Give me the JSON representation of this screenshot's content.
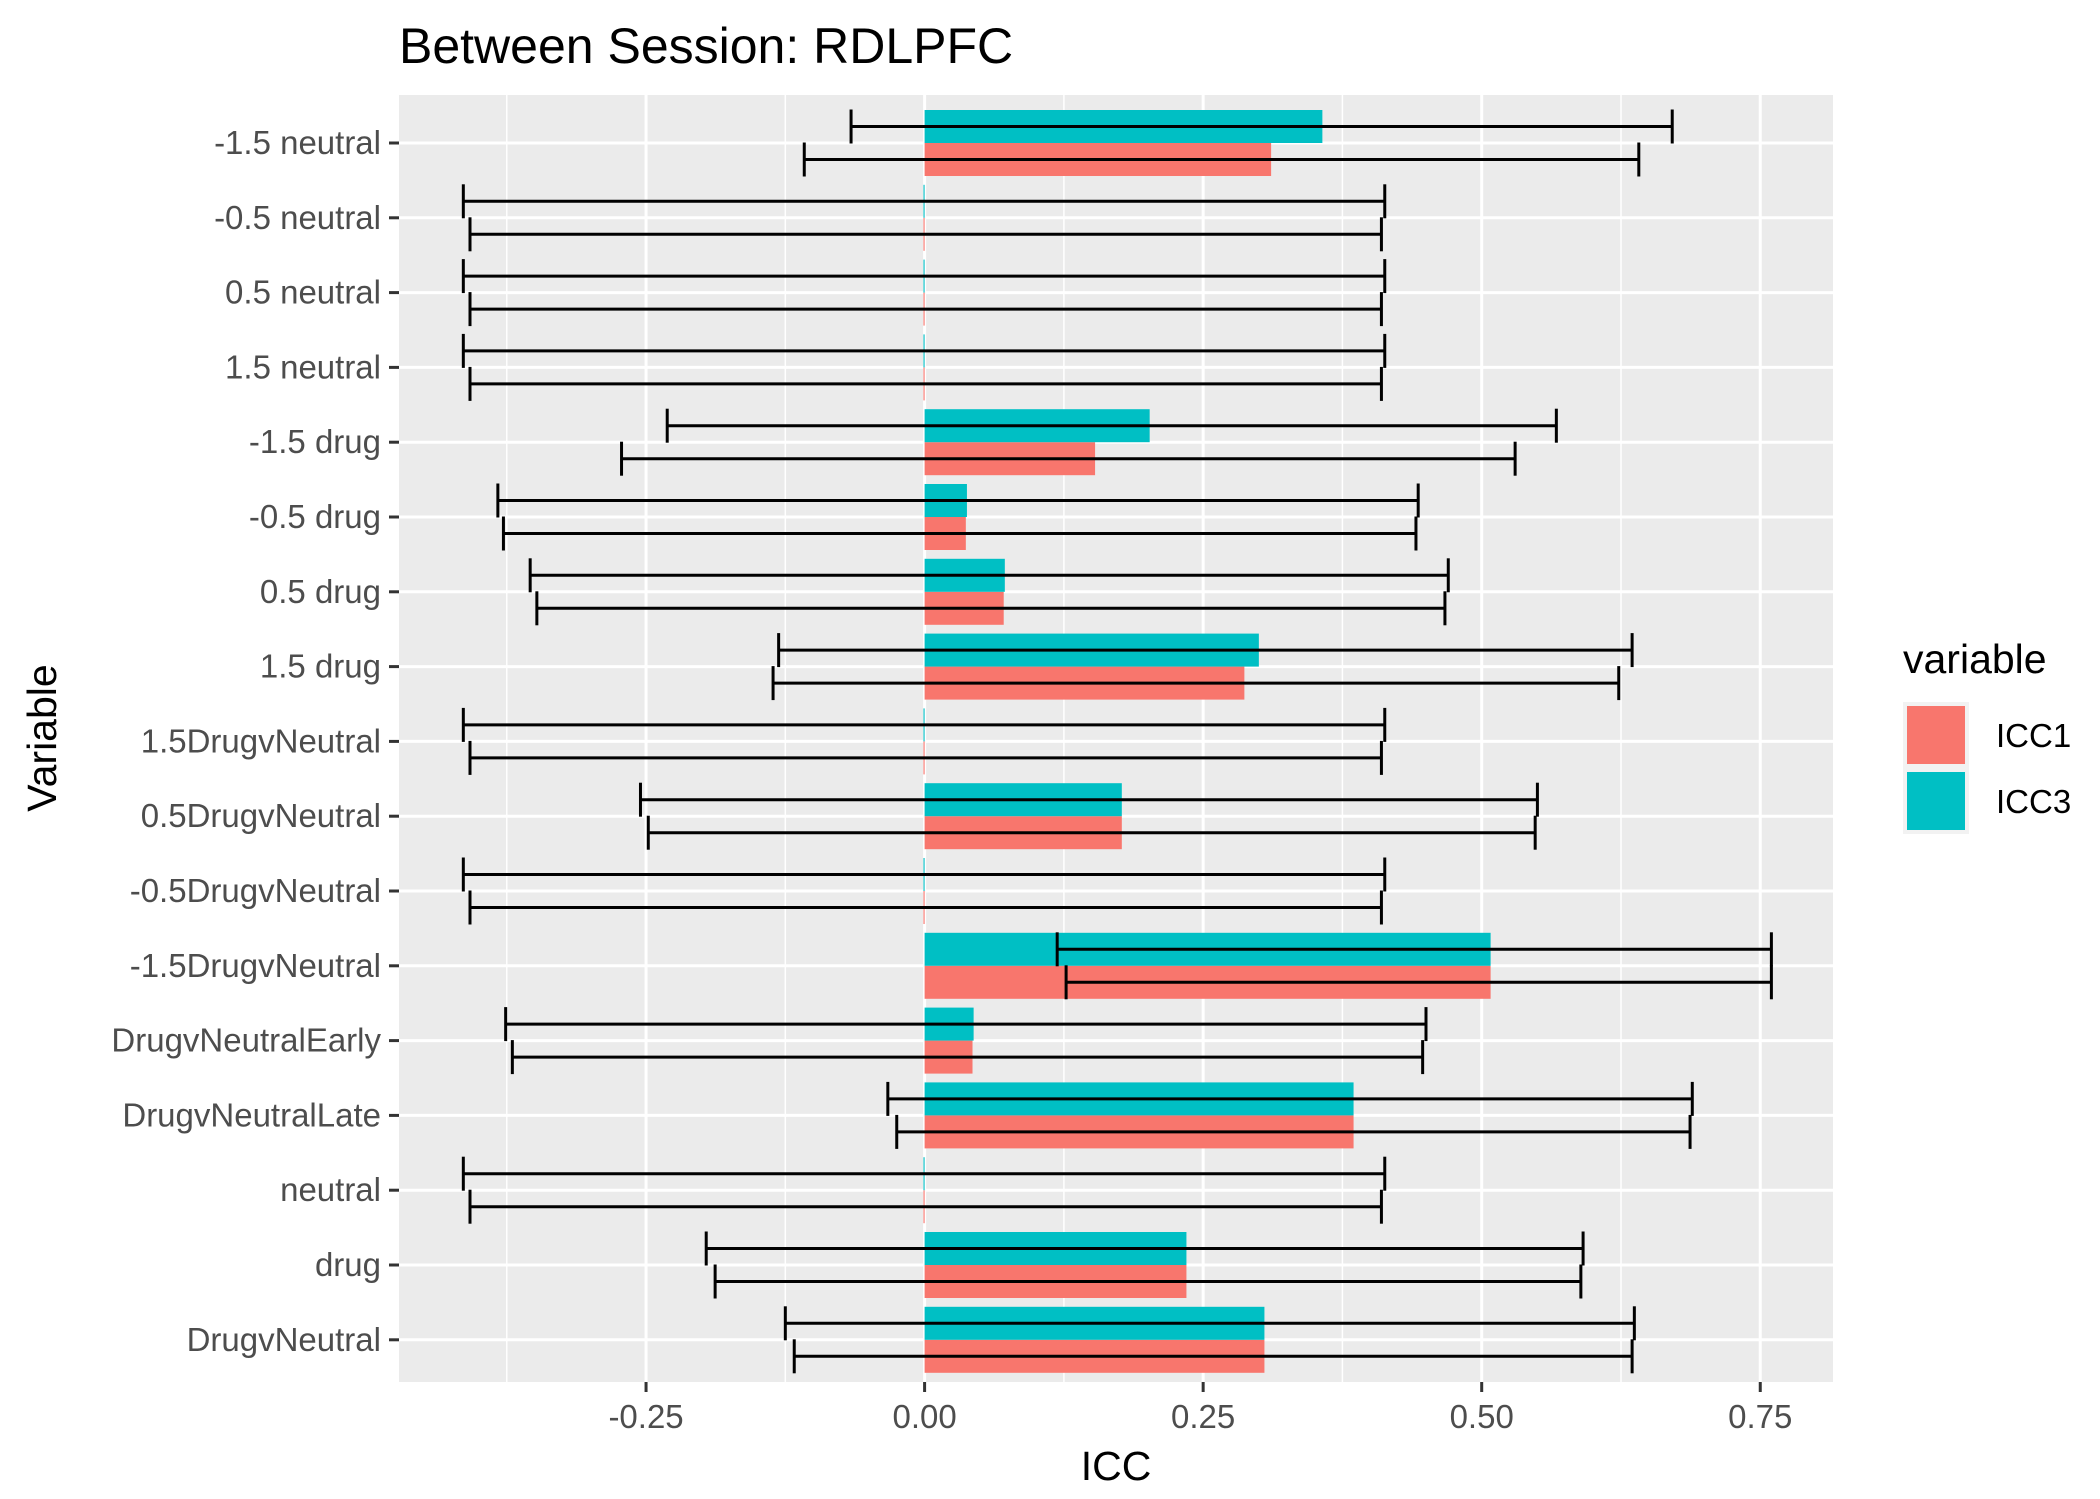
{
  "chart_data": {
    "type": "bar",
    "orientation": "horizontal",
    "title": "Between Session: RDLPFC",
    "xlabel": "ICC",
    "ylabel": "Variable",
    "xlim": [
      -0.47,
      0.82
    ],
    "xticks": [
      -0.25,
      0.0,
      0.25,
      0.5,
      0.75
    ],
    "xtick_labels": [
      "-0.25",
      "0.00",
      "0.25",
      "0.50",
      "0.75"
    ],
    "grid": true,
    "legend": {
      "title": "variable",
      "position": "right"
    },
    "categories": [
      "-1.5 neutral",
      "-0.5 neutral",
      "0.5 neutral",
      "1.5 neutral",
      "-1.5 drug",
      "-0.5 drug",
      "0.5 drug",
      "1.5 drug",
      "1.5DrugvNeutral",
      "0.5DrugvNeutral",
      "-0.5DrugvNeutral",
      "-1.5DrugvNeutral",
      "DrugvNeutralEarly",
      "DrugvNeutralLate",
      "neutral",
      "drug",
      "DrugvNeutral"
    ],
    "series": [
      {
        "name": "ICC1",
        "color": "#F8766D",
        "values": [
          0.311,
          -0.001,
          -0.001,
          -0.001,
          0.153,
          0.037,
          0.071,
          0.287,
          -0.001,
          0.177,
          -0.001,
          0.508,
          0.043,
          0.385,
          -0.001,
          0.235,
          0.305
        ],
        "lower": [
          -0.108,
          -0.408,
          -0.408,
          -0.408,
          -0.272,
          -0.378,
          -0.348,
          -0.136,
          -0.408,
          -0.248,
          -0.408,
          0.127,
          -0.37,
          -0.025,
          -0.408,
          -0.188,
          -0.117
        ],
        "upper": [
          0.641,
          0.41,
          0.41,
          0.41,
          0.53,
          0.441,
          0.467,
          0.623,
          0.41,
          0.548,
          0.41,
          0.76,
          0.447,
          0.687,
          0.41,
          0.589,
          0.635
        ]
      },
      {
        "name": "ICC3",
        "color": "#00BFC4",
        "values": [
          0.357,
          -0.001,
          -0.001,
          -0.001,
          0.202,
          0.038,
          0.072,
          0.3,
          -0.001,
          0.177,
          -0.001,
          0.508,
          0.044,
          0.385,
          -0.001,
          0.235,
          0.305
        ],
        "lower": [
          -0.066,
          -0.414,
          -0.414,
          -0.414,
          -0.231,
          -0.383,
          -0.354,
          -0.131,
          -0.414,
          -0.255,
          -0.414,
          0.119,
          -0.376,
          -0.033,
          -0.414,
          -0.196,
          -0.125
        ],
        "upper": [
          0.671,
          0.413,
          0.413,
          0.413,
          0.567,
          0.443,
          0.47,
          0.635,
          0.413,
          0.55,
          0.413,
          0.76,
          0.45,
          0.689,
          0.413,
          0.591,
          0.637
        ]
      }
    ]
  }
}
